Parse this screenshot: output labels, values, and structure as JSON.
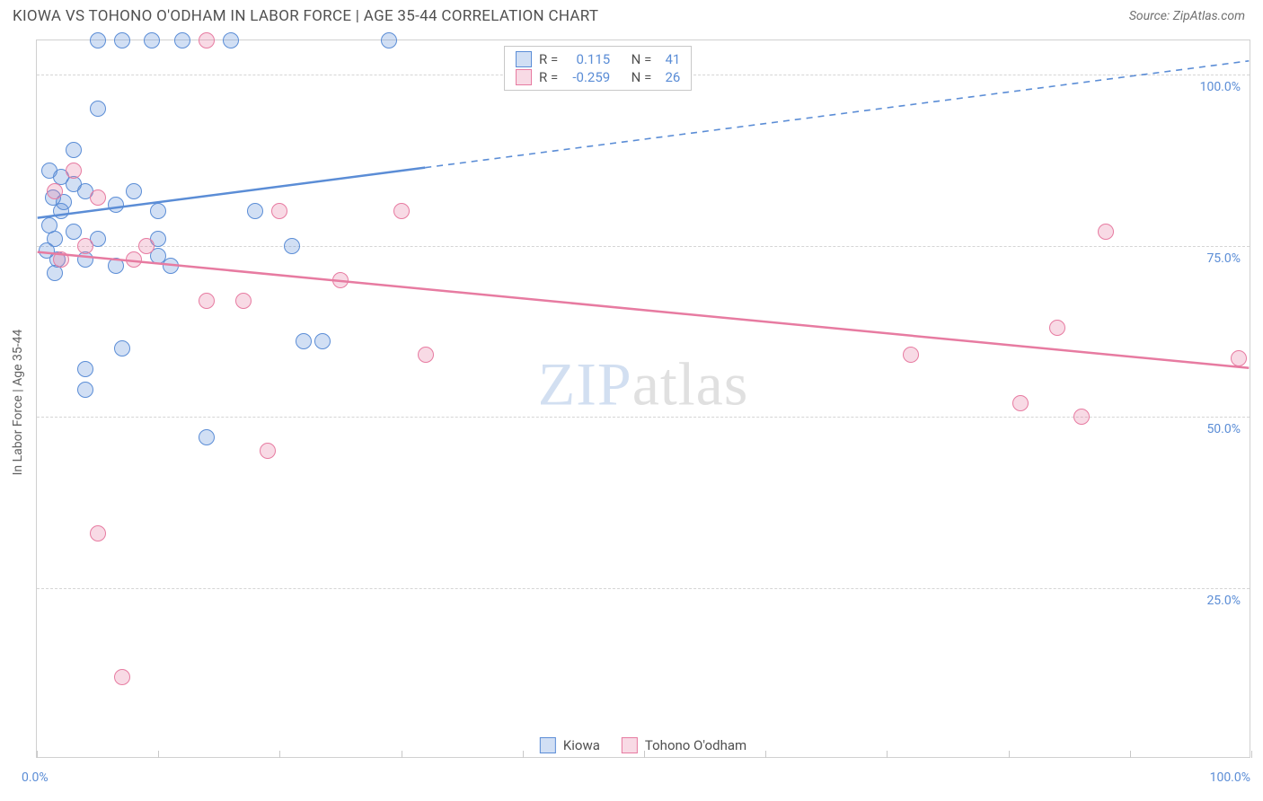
{
  "title": "KIOWA VS TOHONO O'ODHAM IN LABOR FORCE | AGE 35-44 CORRELATION CHART",
  "source": "Source: ZipAtlas.com",
  "y_axis_label": "In Labor Force | Age 35-44",
  "watermark_a": "ZIP",
  "watermark_b": "atlas",
  "chart": {
    "type": "scatter",
    "background_color": "#ffffff",
    "border_color": "#d0d0d0",
    "grid_color": "#d5d5d5",
    "xlim": [
      0,
      100
    ],
    "ylim": [
      0,
      105
    ],
    "y_ticks": [
      25,
      50,
      75,
      100
    ],
    "y_tick_labels": [
      "25.0%",
      "50.0%",
      "75.0%",
      "100.0%"
    ],
    "x_ticks": [
      0,
      10,
      20,
      30,
      40,
      50,
      60,
      70,
      80,
      90,
      100
    ],
    "x_min_label": "0.0%",
    "x_max_label": "100.0%",
    "tick_label_color": "#5b8dd6",
    "point_radius": 9,
    "point_fill_opacity": 0.28,
    "series": {
      "kiowa": {
        "label": "Kiowa",
        "color": "#5b8dd6",
        "fill": "rgba(91,141,214,0.28)",
        "stroke": "#5b8dd6",
        "R_label": "R =",
        "R": "0.115",
        "N_label": "N =",
        "N": "41",
        "trend": {
          "x1": 0,
          "y1": 79,
          "x2": 100,
          "y2": 102,
          "solid_until_x": 32
        },
        "points": [
          [
            5,
            105
          ],
          [
            7,
            105
          ],
          [
            9.5,
            105
          ],
          [
            12,
            105
          ],
          [
            16,
            105
          ],
          [
            29,
            105
          ],
          [
            5,
            95
          ],
          [
            3,
            89
          ],
          [
            1,
            86
          ],
          [
            2,
            85
          ],
          [
            3,
            84
          ],
          [
            1.3,
            82
          ],
          [
            2.2,
            81.4
          ],
          [
            4,
            83
          ],
          [
            8,
            83
          ],
          [
            6.5,
            81
          ],
          [
            2,
            80
          ],
          [
            10,
            80
          ],
          [
            18,
            80
          ],
          [
            1,
            78
          ],
          [
            3,
            77
          ],
          [
            1.5,
            76
          ],
          [
            5,
            76
          ],
          [
            10,
            76
          ],
          [
            21,
            75
          ],
          [
            0.8,
            74.3
          ],
          [
            1.7,
            73
          ],
          [
            4,
            73
          ],
          [
            10,
            73.5
          ],
          [
            6.5,
            72
          ],
          [
            11,
            72
          ],
          [
            1.5,
            71
          ],
          [
            7,
            60
          ],
          [
            22,
            61
          ],
          [
            23.5,
            61
          ],
          [
            4,
            57
          ],
          [
            4,
            54
          ],
          [
            14,
            47
          ]
        ]
      },
      "tohono": {
        "label": "Tohono O'odham",
        "color": "#e77ba1",
        "fill": "rgba(231,123,161,0.28)",
        "stroke": "#e77ba1",
        "R_label": "R =",
        "R": "-0.259",
        "N_label": "N =",
        "N": "26",
        "trend": {
          "x1": 0,
          "y1": 74,
          "x2": 100,
          "y2": 57,
          "solid_until_x": 100
        },
        "points": [
          [
            14,
            105
          ],
          [
            3,
            86
          ],
          [
            1.5,
            83
          ],
          [
            5,
            82
          ],
          [
            20,
            80
          ],
          [
            30,
            80
          ],
          [
            88,
            77
          ],
          [
            4,
            75
          ],
          [
            9,
            75
          ],
          [
            2,
            73
          ],
          [
            8,
            73
          ],
          [
            25,
            70
          ],
          [
            14,
            67
          ],
          [
            17,
            67
          ],
          [
            84,
            63
          ],
          [
            72,
            59
          ],
          [
            32,
            59
          ],
          [
            99,
            58.5
          ],
          [
            81,
            52
          ],
          [
            86,
            50
          ],
          [
            19,
            45
          ],
          [
            5,
            33
          ],
          [
            7,
            12
          ]
        ]
      }
    }
  },
  "legend_bottom": {
    "a": "Kiowa",
    "b": "Tohono O'odham"
  }
}
